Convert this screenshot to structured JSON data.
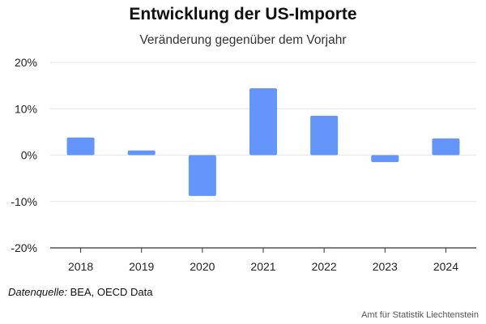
{
  "header": {
    "title": "Entwicklung der US-Importe",
    "subtitle": "Veränderung gegenüber dem Vorjahr"
  },
  "source": {
    "label": "Datenquelle:",
    "text": " BEA, OECD Data"
  },
  "footer": {
    "credit": "Amt für Statistik Liechtenstein"
  },
  "colors": {
    "bar": "#6495fa",
    "grid": "#e6e6e6",
    "axis": "#333333"
  },
  "chart_data": {
    "type": "bar",
    "title": "Entwicklung der US-Importe",
    "subtitle": "Veränderung gegenüber dem Vorjahr",
    "categories": [
      "2018",
      "2019",
      "2020",
      "2021",
      "2022",
      "2023",
      "2024"
    ],
    "values": [
      3.8,
      1.0,
      -8.8,
      14.4,
      8.5,
      -1.5,
      3.6
    ],
    "ylim": [
      -20,
      20
    ],
    "yticks": [
      -20,
      -10,
      0,
      10,
      20
    ],
    "ytick_labels": [
      "-20%",
      "-10%",
      "0%",
      "10%",
      "20%"
    ],
    "grid": true,
    "legend": "none"
  }
}
